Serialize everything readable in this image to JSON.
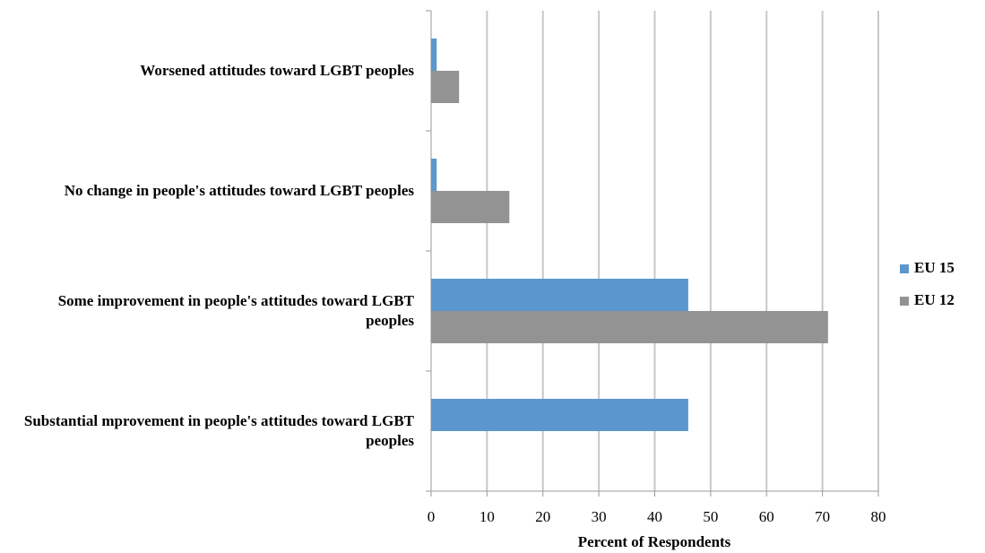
{
  "chart_data": {
    "type": "bar",
    "orientation": "horizontal",
    "x_label": "Percent of Respondents",
    "categories": [
      "Worsened attitudes toward LGBT peoples",
      "No change in people's attitudes toward LGBT peoples",
      "Some improvement in people's attitudes toward LGBT peoples",
      "Substantial mprovement in people's attitudes toward LGBT peoples"
    ],
    "series": [
      {
        "name": "EU 15",
        "color": "#5b97cc",
        "values": [
          1,
          1,
          46,
          46
        ]
      },
      {
        "name": "EU 12",
        "color": "#939393",
        "values": [
          5,
          14,
          71,
          0
        ]
      }
    ],
    "xlim": [
      0,
      80
    ],
    "xticks": [
      0,
      10,
      20,
      30,
      40,
      50,
      60,
      70,
      80
    ],
    "grid": true,
    "legend": "right"
  }
}
